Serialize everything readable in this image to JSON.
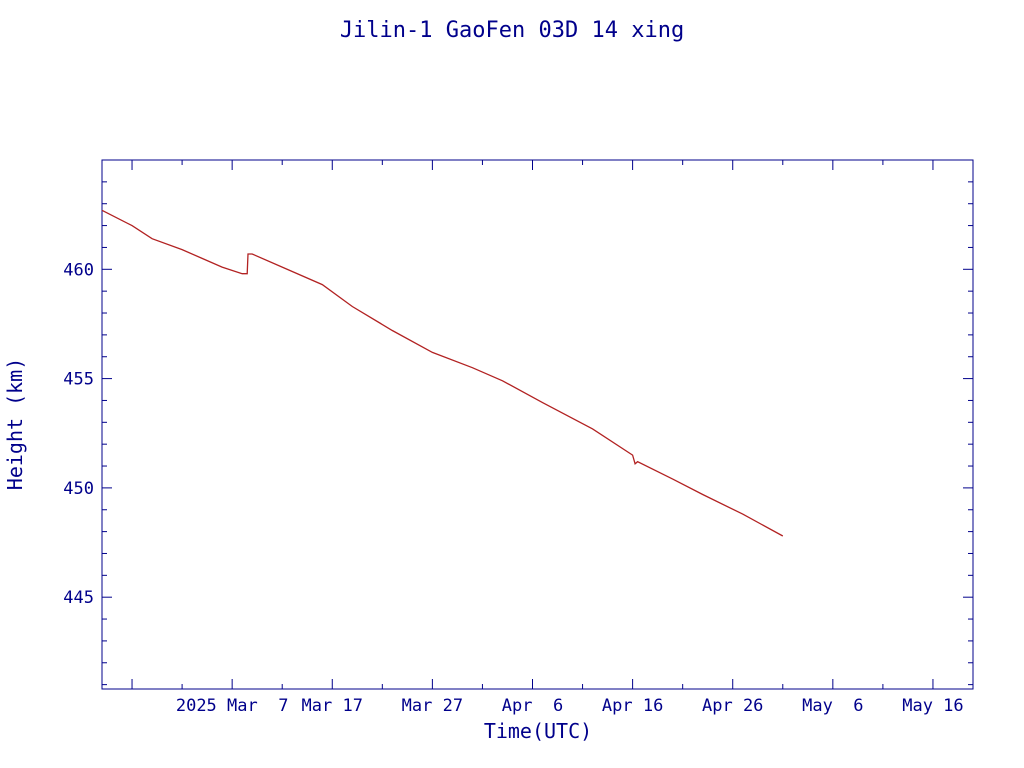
{
  "chart_data": {
    "type": "line",
    "title": "Jilin-1 GaoFen 03D 14 xing",
    "xlabel": "Time(UTC)",
    "ylabel": "Height (km)",
    "x_range": [
      "2025-02-22",
      "2025-05-20"
    ],
    "ylim": [
      440.8,
      465.0
    ],
    "x_ticks": [
      {
        "date": "2025-03-07",
        "label": "2025 Mar  7"
      },
      {
        "date": "2025-03-17",
        "label": "Mar 17"
      },
      {
        "date": "2025-03-27",
        "label": "Mar 27"
      },
      {
        "date": "2025-04-06",
        "label": "Apr  6"
      },
      {
        "date": "2025-04-16",
        "label": "Apr 16"
      },
      {
        "date": "2025-04-26",
        "label": "Apr 26"
      },
      {
        "date": "2025-05-06",
        "label": "May  6"
      },
      {
        "date": "2025-05-16",
        "label": "May 16"
      }
    ],
    "y_ticks": [
      445,
      450,
      455,
      460
    ],
    "grid": false,
    "line_color": "#b22222",
    "axis_color": "#00008b",
    "series": [
      {
        "x": [
          "2025-02-22",
          "2025-02-25",
          "2025-02-27",
          "2025-03-02",
          "2025-03-04",
          "2025-03-06",
          "2025-03-08",
          "2025-03-08T12:00",
          "2025-03-08T14:00",
          "2025-03-09",
          "2025-03-12",
          "2025-03-16",
          "2025-03-19",
          "2025-03-23",
          "2025-03-27",
          "2025-03-31",
          "2025-04-03",
          "2025-04-07",
          "2025-04-12",
          "2025-04-16",
          "2025-04-16T06:00",
          "2025-04-16T12:00",
          "2025-04-20",
          "2025-04-23",
          "2025-04-27",
          "2025-05-01"
        ],
        "y": [
          462.7,
          462.0,
          461.4,
          460.9,
          460.5,
          460.1,
          459.8,
          459.8,
          460.7,
          460.7,
          460.1,
          459.3,
          458.3,
          457.2,
          456.2,
          455.5,
          454.9,
          453.9,
          452.7,
          451.5,
          451.1,
          451.2,
          450.4,
          449.7,
          448.8,
          447.8
        ]
      }
    ]
  }
}
